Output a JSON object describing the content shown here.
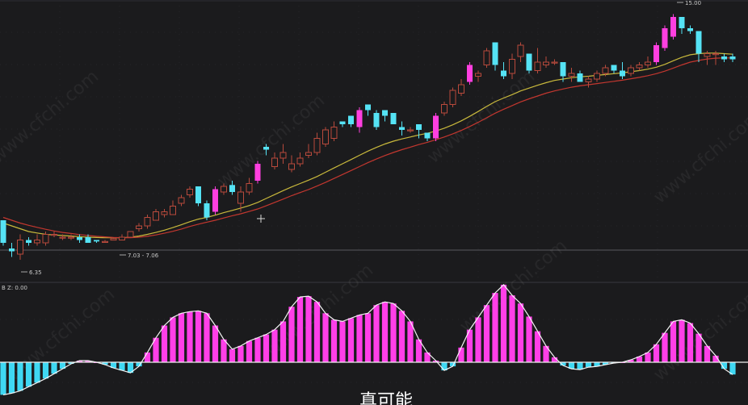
{
  "colors": {
    "background": "#1b1b1d",
    "gridline": "#2c2c30",
    "up": "#b84a3c",
    "down": "#55e3f5",
    "strong_up": "#ff3fe0",
    "ma_short": "#c9b93c",
    "ma_long": "#c3372f",
    "zero_line": "#f0f0f0",
    "histo_pos": "#ff3fe8",
    "histo_neg": "#3fd8f3",
    "histo_line": "#f4f4f4"
  },
  "price_panel": {
    "high_label": "15.00",
    "low_label": "6.35",
    "range_label": "7.03 - 7.06"
  },
  "indicator_panel": {
    "label": "B Z: 0.00"
  },
  "subtitle": "真可能",
  "watermark": "www.cfchi.com",
  "chart_data": [
    {
      "type": "candlestick",
      "title": "",
      "ylim": [
        5.5,
        15.5
      ],
      "series": [
        {
          "name": "",
          "ohlc": [
            [
              7.7,
              7.7,
              6.8,
              6.9
            ],
            [
              6.7,
              6.9,
              6.4,
              6.6
            ],
            [
              6.5,
              7.2,
              6.3,
              7.0
            ],
            [
              7.0,
              7.1,
              6.8,
              6.9
            ],
            [
              6.9,
              7.2,
              6.8,
              7.0
            ],
            [
              6.9,
              7.3,
              6.8,
              7.2
            ],
            [
              7.2,
              7.3,
              7.1,
              7.2
            ],
            [
              7.1,
              7.2,
              7.0,
              7.1
            ],
            [
              7.1,
              7.2,
              7.0,
              7.1
            ],
            [
              7.1,
              7.2,
              6.9,
              7.0
            ],
            [
              7.1,
              7.2,
              6.9,
              6.9
            ],
            [
              7.0,
              7.0,
              6.9,
              6.95
            ],
            [
              6.95,
              7.0,
              6.9,
              6.95
            ],
            [
              7.0,
              7.1,
              7.0,
              7.05
            ],
            [
              7.0,
              7.2,
              7.0,
              7.1
            ],
            [
              7.1,
              7.3,
              7.1,
              7.3
            ],
            [
              7.4,
              7.6,
              7.3,
              7.5
            ],
            [
              7.5,
              7.9,
              7.4,
              7.8
            ],
            [
              7.7,
              8.1,
              7.7,
              8.0
            ],
            [
              7.9,
              8.1,
              7.8,
              8.0
            ],
            [
              7.9,
              8.4,
              7.9,
              8.2
            ],
            [
              8.3,
              8.6,
              8.2,
              8.5
            ],
            [
              8.6,
              8.9,
              8.5,
              8.8
            ],
            [
              8.9,
              8.8,
              8.2,
              8.3
            ],
            [
              8.3,
              8.4,
              7.7,
              7.8
            ],
            [
              8.0,
              8.9,
              7.9,
              8.8
            ],
            [
              8.7,
              9.0,
              8.6,
              8.9
            ],
            [
              8.95,
              9.1,
              8.6,
              8.7
            ],
            [
              8.3,
              8.9,
              8.0,
              8.7
            ],
            [
              8.7,
              9.2,
              8.6,
              9.0
            ],
            [
              9.1,
              9.8,
              9.0,
              9.7
            ],
            [
              10.3,
              10.4,
              10.0,
              10.2
            ],
            [
              9.6,
              10.1,
              9.5,
              9.9
            ],
            [
              9.9,
              10.4,
              9.7,
              10.1
            ],
            [
              9.5,
              10.0,
              9.4,
              9.7
            ],
            [
              9.7,
              10.1,
              9.6,
              9.9
            ],
            [
              10.0,
              10.4,
              9.9,
              10.1
            ],
            [
              10.1,
              10.8,
              10.0,
              10.6
            ],
            [
              10.4,
              11.0,
              10.3,
              10.9
            ],
            [
              10.6,
              11.2,
              10.5,
              11.0
            ],
            [
              11.2,
              11.2,
              11.0,
              11.1
            ],
            [
              11.4,
              11.4,
              11.0,
              11.1
            ],
            [
              11.0,
              11.7,
              10.8,
              11.6
            ],
            [
              11.8,
              11.8,
              11.4,
              11.6
            ],
            [
              11.5,
              11.6,
              10.9,
              11.0
            ],
            [
              11.6,
              11.5,
              11.2,
              11.4
            ],
            [
              11.5,
              11.4,
              11.1,
              11.1
            ],
            [
              11.0,
              11.2,
              10.7,
              10.9
            ],
            [
              10.9,
              11.0,
              10.8,
              10.9
            ],
            [
              11.1,
              11.1,
              10.6,
              10.9
            ],
            [
              10.8,
              10.8,
              10.5,
              10.6
            ],
            [
              10.6,
              11.5,
              10.5,
              11.4
            ],
            [
              11.5,
              11.9,
              11.4,
              11.8
            ],
            [
              11.8,
              12.4,
              11.7,
              12.3
            ],
            [
              12.2,
              12.7,
              12.1,
              12.5
            ],
            [
              12.6,
              13.3,
              12.5,
              13.2
            ],
            [
              12.8,
              13.0,
              12.6,
              12.9
            ],
            [
              13.2,
              13.8,
              13.1,
              13.7
            ],
            [
              14.0,
              13.9,
              13.0,
              13.2
            ],
            [
              13.0,
              13.3,
              12.7,
              12.8
            ],
            [
              12.9,
              13.6,
              12.7,
              13.4
            ],
            [
              13.5,
              14.0,
              13.3,
              13.9
            ],
            [
              13.6,
              13.6,
              12.9,
              13.0
            ],
            [
              13.0,
              13.8,
              12.9,
              13.3
            ],
            [
              13.2,
              13.5,
              13.1,
              13.3
            ],
            [
              13.3,
              13.4,
              13.2,
              13.3
            ],
            [
              13.3,
              13.3,
              12.6,
              12.8
            ],
            [
              12.8,
              13.1,
              12.6,
              12.9
            ],
            [
              12.9,
              13.0,
              12.6,
              12.6
            ],
            [
              12.6,
              12.8,
              12.4,
              12.7
            ],
            [
              12.7,
              13.0,
              12.6,
              12.9
            ],
            [
              12.9,
              13.2,
              12.8,
              13.1
            ],
            [
              13.2,
              13.2,
              12.9,
              13.0
            ],
            [
              13.0,
              13.3,
              12.7,
              12.8
            ],
            [
              12.9,
              13.2,
              12.8,
              13.1
            ],
            [
              13.1,
              13.3,
              13.0,
              13.2
            ],
            [
              13.2,
              13.5,
              13.1,
              13.3
            ],
            [
              13.3,
              14.0,
              13.2,
              13.9
            ],
            [
              13.8,
              14.6,
              13.7,
              14.5
            ],
            [
              14.2,
              15.0,
              14.1,
              14.9
            ],
            [
              14.9,
              14.9,
              14.3,
              14.5
            ],
            [
              14.5,
              14.6,
              14.3,
              14.4
            ],
            [
              14.4,
              14.3,
              13.3,
              13.6
            ],
            [
              13.5,
              13.7,
              13.2,
              13.6
            ],
            [
              13.6,
              13.7,
              13.2,
              13.6
            ],
            [
              13.5,
              13.6,
              13.3,
              13.4
            ],
            [
              13.5,
              13.6,
              13.3,
              13.4
            ]
          ]
        }
      ],
      "moving_averages": [
        {
          "name": "",
          "values": [
            7.6,
            7.5,
            7.4,
            7.3,
            7.25,
            7.2,
            7.18,
            7.16,
            7.14,
            7.12,
            7.1,
            7.09,
            7.08,
            7.08,
            7.08,
            7.1,
            7.14,
            7.2,
            7.27,
            7.35,
            7.44,
            7.54,
            7.65,
            7.74,
            7.8,
            7.88,
            7.97,
            8.05,
            8.13,
            8.22,
            8.33,
            8.47,
            8.61,
            8.75,
            8.88,
            9.0,
            9.12,
            9.25,
            9.4,
            9.55,
            9.7,
            9.85,
            10.0,
            10.15,
            10.28,
            10.4,
            10.5,
            10.58,
            10.65,
            10.72,
            10.78,
            10.86,
            10.96,
            11.08,
            11.22,
            11.38,
            11.55,
            11.73,
            11.9,
            12.03,
            12.15,
            12.28,
            12.38,
            12.48,
            12.57,
            12.65,
            12.7,
            12.75,
            12.78,
            12.8,
            12.83,
            12.86,
            12.89,
            12.92,
            12.96,
            13.0,
            13.05,
            13.12,
            13.22,
            13.35,
            13.47,
            13.56,
            13.6,
            13.62,
            13.62,
            13.6,
            13.58
          ]
        },
        {
          "name": "",
          "values": [
            7.8,
            7.7,
            7.6,
            7.52,
            7.45,
            7.38,
            7.32,
            7.27,
            7.23,
            7.19,
            7.16,
            7.13,
            7.11,
            7.09,
            7.08,
            7.08,
            7.1,
            7.13,
            7.18,
            7.24,
            7.31,
            7.39,
            7.48,
            7.56,
            7.63,
            7.7,
            7.78,
            7.86,
            7.93,
            8.01,
            8.1,
            8.21,
            8.33,
            8.45,
            8.57,
            8.68,
            8.79,
            8.91,
            9.04,
            9.18,
            9.32,
            9.46,
            9.6,
            9.74,
            9.87,
            9.99,
            10.1,
            10.2,
            10.29,
            10.38,
            10.46,
            10.55,
            10.65,
            10.76,
            10.88,
            11.02,
            11.17,
            11.33,
            11.49,
            11.63,
            11.76,
            11.89,
            12.0,
            12.1,
            12.2,
            12.28,
            12.35,
            12.41,
            12.46,
            12.5,
            12.54,
            12.58,
            12.62,
            12.66,
            12.71,
            12.76,
            12.82,
            12.89,
            12.98,
            13.09,
            13.2,
            13.3,
            13.36,
            13.41,
            13.44,
            13.45,
            13.45
          ]
        }
      ]
    },
    {
      "type": "bar",
      "title": "",
      "ylim": [
        -0.45,
        0.9
      ],
      "values": [
        -0.4,
        -0.38,
        -0.35,
        -0.3,
        -0.25,
        -0.2,
        -0.14,
        -0.08,
        -0.02,
        0.02,
        0.02,
        0.0,
        -0.03,
        -0.07,
        -0.1,
        -0.13,
        -0.05,
        0.12,
        0.3,
        0.45,
        0.55,
        0.6,
        0.62,
        0.63,
        0.6,
        0.45,
        0.28,
        0.16,
        0.2,
        0.26,
        0.3,
        0.34,
        0.4,
        0.5,
        0.68,
        0.8,
        0.81,
        0.74,
        0.6,
        0.52,
        0.5,
        0.54,
        0.58,
        0.6,
        0.7,
        0.74,
        0.72,
        0.63,
        0.5,
        0.28,
        0.12,
        0.02,
        -0.1,
        -0.05,
        0.18,
        0.4,
        0.55,
        0.7,
        0.85,
        0.95,
        0.82,
        0.72,
        0.56,
        0.38,
        0.2,
        0.06,
        -0.04,
        -0.08,
        -0.09,
        -0.06,
        -0.05,
        -0.03,
        -0.01,
        0.0,
        0.03,
        0.07,
        0.12,
        0.22,
        0.36,
        0.5,
        0.52,
        0.48,
        0.35,
        0.2,
        0.08,
        -0.08,
        -0.15
      ]
    }
  ]
}
